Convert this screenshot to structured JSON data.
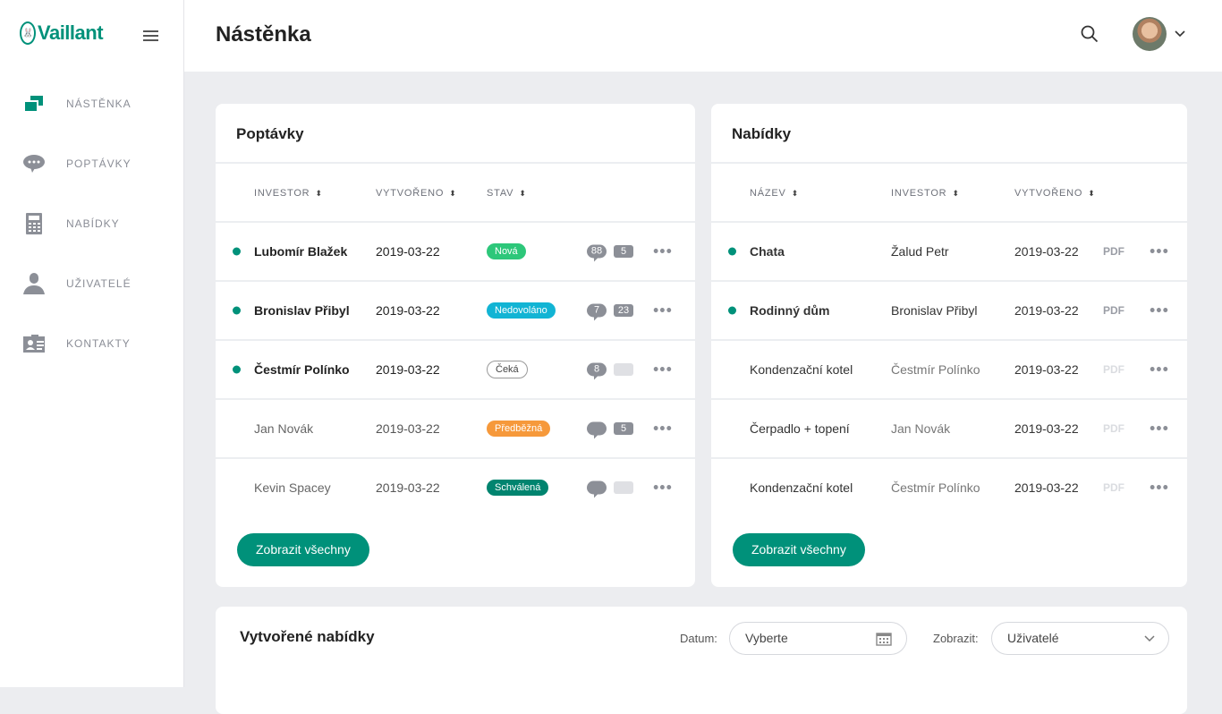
{
  "app": {
    "brand": "Vaillant",
    "page_title": "Nástěnka",
    "accent": "#00917a"
  },
  "sidebar": {
    "items": [
      {
        "label": "NÁSTĚNKA",
        "icon": "dashboard-icon",
        "active": true
      },
      {
        "label": "POPTÁVKY",
        "icon": "chat-icon"
      },
      {
        "label": "NABÍDKY",
        "icon": "calculator-icon"
      },
      {
        "label": "UŽIVATELÉ",
        "icon": "user-icon"
      },
      {
        "label": "KONTAKTY",
        "icon": "contact-card-icon"
      }
    ]
  },
  "poptavky": {
    "title": "Poptávky",
    "columns": [
      "INVESTOR",
      "VYTVOŘENO",
      "STAV"
    ],
    "button": "Zobrazit všechny",
    "rows": [
      {
        "investor": "Lubomír Blažek",
        "date": "2019-03-22",
        "status": "Nová",
        "status_color": "#2dc77a",
        "comments": "88",
        "count": "5",
        "unread": true
      },
      {
        "investor": "Bronislav Přibyl",
        "date": "2019-03-22",
        "status": "Nedovoláno",
        "status_color": "#12b4d4",
        "comments": "7",
        "count": "23",
        "unread": true
      },
      {
        "investor": "Čestmír Polínko",
        "date": "2019-03-22",
        "status": "Čeká",
        "status_color": "#ffffff",
        "comments": "8",
        "count": "",
        "unread": true
      },
      {
        "investor": "Jan Novák",
        "date": "2019-03-22",
        "status": "Předběžná",
        "status_color": "#f6993b",
        "comments": "",
        "count": "5",
        "unread": false
      },
      {
        "investor": "Kevin Spacey",
        "date": "2019-03-22",
        "status": "Schválená",
        "status_color": "#00846f",
        "comments": "",
        "count": "",
        "unread": false
      }
    ]
  },
  "nabidky": {
    "title": "Nabídky",
    "columns": [
      "NÁZEV",
      "INVESTOR",
      "VYTVOŘENO"
    ],
    "button": "Zobrazit všechny",
    "pdf": "PDF",
    "rows": [
      {
        "name": "Chata",
        "investor": "Žalud Petr",
        "date": "2019-03-22",
        "unread": true,
        "pdf_enabled": true
      },
      {
        "name": "Rodinný dům",
        "investor": "Bronislav Přibyl",
        "date": "2019-03-22",
        "unread": true,
        "pdf_enabled": true
      },
      {
        "name": "Kondenzační kotel",
        "investor": "Čestmír Polínko",
        "date": "2019-03-22",
        "unread": false,
        "pdf_enabled": false
      },
      {
        "name": "Čerpadlo + topení",
        "investor": "Jan Novák",
        "date": "2019-03-22",
        "unread": false,
        "pdf_enabled": false
      },
      {
        "name": "Kondenzační kotel",
        "investor": "Čestmír Polínko",
        "date": "2019-03-22",
        "unread": false,
        "pdf_enabled": false
      }
    ]
  },
  "vytvorene": {
    "title": "Vytvořené nabídky",
    "date_label": "Datum:",
    "date_value": "Vyberte",
    "show_label": "Zobrazit:",
    "show_value": "Uživatelé"
  }
}
